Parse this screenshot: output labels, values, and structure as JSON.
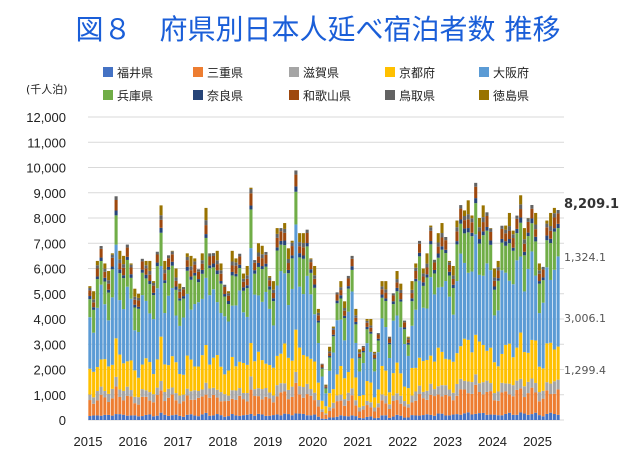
{
  "title": "図８　府県別日本人延べ宿泊者数  推移",
  "chart_data": {
    "type": "bar",
    "stacked": true,
    "unit_label": "(千人泊)",
    "ylim": [
      0,
      12000
    ],
    "y_ticks": [
      "0",
      "1,000",
      "2,000",
      "3,000",
      "4,000",
      "5,000",
      "6,000",
      "7,000",
      "8,000",
      "9,000",
      "10,000",
      "11,000",
      "12,000"
    ],
    "x_ticks": [
      "2015",
      "2016",
      "2017",
      "2018",
      "2019",
      "2020",
      "2021",
      "2022",
      "2023",
      "2024",
      "2025"
    ],
    "grid": true,
    "legend_position": "top",
    "months": [
      "2015-01",
      "2015-02",
      "2015-03",
      "2015-04",
      "2015-05",
      "2015-06",
      "2015-07",
      "2015-08",
      "2015-09",
      "2015-10",
      "2015-11",
      "2015-12",
      "2016-01",
      "2016-02",
      "2016-03",
      "2016-04",
      "2016-05",
      "2016-06",
      "2016-07",
      "2016-08",
      "2016-09",
      "2016-10",
      "2016-11",
      "2016-12",
      "2017-01",
      "2017-02",
      "2017-03",
      "2017-04",
      "2017-05",
      "2017-06",
      "2017-07",
      "2017-08",
      "2017-09",
      "2017-10",
      "2017-11",
      "2017-12",
      "2018-01",
      "2018-02",
      "2018-03",
      "2018-04",
      "2018-05",
      "2018-06",
      "2018-07",
      "2018-08",
      "2018-09",
      "2018-10",
      "2018-11",
      "2018-12",
      "2019-01",
      "2019-02",
      "2019-03",
      "2019-04",
      "2019-05",
      "2019-06",
      "2019-07",
      "2019-08",
      "2019-09",
      "2019-10",
      "2019-11",
      "2019-12",
      "2020-01",
      "2020-02",
      "2020-03",
      "2020-04",
      "2020-05",
      "2020-06",
      "2020-07",
      "2020-08",
      "2020-09",
      "2020-10",
      "2020-11",
      "2020-12",
      "2021-01",
      "2021-02",
      "2021-03",
      "2021-04",
      "2021-05",
      "2021-06",
      "2021-07",
      "2021-08",
      "2021-09",
      "2021-10",
      "2021-11",
      "2021-12",
      "2022-01",
      "2022-02",
      "2022-03",
      "2022-04",
      "2022-05",
      "2022-06",
      "2022-07",
      "2022-08",
      "2022-09",
      "2022-10",
      "2022-11",
      "2022-12",
      "2023-01",
      "2023-02",
      "2023-03",
      "2023-04",
      "2023-05",
      "2023-06",
      "2023-07",
      "2023-08",
      "2023-09",
      "2023-10",
      "2023-11",
      "2023-12",
      "2024-01",
      "2024-02",
      "2024-03",
      "2024-04",
      "2024-05",
      "2024-06",
      "2024-07",
      "2024-08",
      "2024-09",
      "2024-10",
      "2024-11",
      "2024-12",
      "2025-01",
      "2025-02",
      "2025-03",
      "2025-04",
      "2025-05",
      "2025-06"
    ],
    "totals": [
      5300,
      5100,
      6300,
      6800,
      6200,
      5900,
      6600,
      8800,
      6700,
      6500,
      6900,
      6200,
      5200,
      5000,
      6300,
      6300,
      6300,
      5500,
      6600,
      8500,
      6300,
      6500,
      6700,
      6000,
      5400,
      5200,
      6600,
      6500,
      6400,
      5900,
      6600,
      8400,
      6600,
      6600,
      6700,
      6200,
      5300,
      5100,
      6700,
      6400,
      6500,
      5800,
      6100,
      9200,
      6300,
      7000,
      6900,
      6600,
      5700,
      5500,
      7600,
      7500,
      7800,
      6800,
      7100,
      9800,
      7400,
      7400,
      7500,
      6400,
      6100,
      4400,
      2200,
      1400,
      2900,
      3700,
      5000,
      5500,
      4700,
      5700,
      6500,
      4400,
      2800,
      2900,
      4000,
      4000,
      2700,
      3400,
      5500,
      5500,
      3300,
      5000,
      5900,
      5400,
      3900,
      3300,
      5500,
      6200,
      7000,
      6000,
      6600,
      7700,
      6300,
      7400,
      7800,
      7200,
      6300,
      6100,
      7900,
      8400,
      8300,
      8700,
      8100,
      9300,
      8000,
      8500,
      8200,
      7600,
      6000,
      6300,
      7600,
      7700,
      8200,
      7500,
      8000,
      8900,
      7600,
      8000,
      8500,
      8200,
      6200,
      6000,
      7900,
      8200,
      8400,
      8209.1
    ],
    "series": [
      {
        "name": "福井県",
        "color": "#4472c4",
        "share": 0.03
      },
      {
        "name": "三重県",
        "color": "#ed7d31",
        "share": 0.105
      },
      {
        "name": "滋賀県",
        "color": "#a5a5a5",
        "share": 0.05
      },
      {
        "name": "京都府",
        "color": "#ffc000",
        "share": 0.175
      },
      {
        "name": "大阪府",
        "color": "#5b9bd5",
        "share": 0.37
      },
      {
        "name": "兵庫県",
        "color": "#70ad47",
        "share": 0.16
      },
      {
        "name": "奈良県",
        "color": "#264478",
        "share": 0.02
      },
      {
        "name": "和歌山県",
        "color": "#9e480e",
        "share": 0.045
      },
      {
        "name": "鳥取県",
        "color": "#636363",
        "share": 0.02
      },
      {
        "name": "徳島県",
        "color": "#997300",
        "share": 0.025
      }
    ],
    "annotations": {
      "total_last": "8,209.1",
      "hyogo_last": "1,324.1",
      "osaka_last": "3,006.1",
      "kyoto_last": "1,299.4"
    }
  }
}
